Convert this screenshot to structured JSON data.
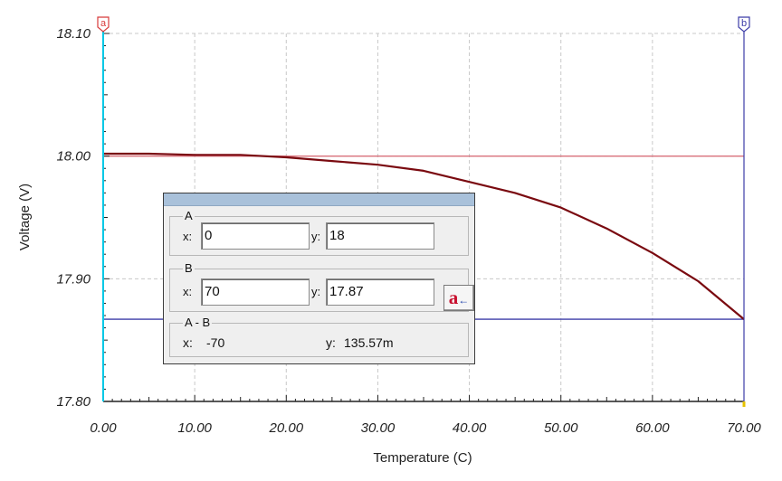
{
  "chart_data": {
    "type": "line",
    "title": "",
    "xlabel": "Temperature (C)",
    "ylabel": "Voltage (V)",
    "xlim": [
      0,
      70
    ],
    "ylim": [
      17.8,
      18.1
    ],
    "grid": true,
    "x_ticks": [
      "0.00",
      "10.00",
      "20.00",
      "30.00",
      "40.00",
      "50.00",
      "60.00",
      "70.00"
    ],
    "y_ticks": [
      "17.80",
      "17.90",
      "18.00",
      "18.10"
    ],
    "series": [
      {
        "color": "#7a0a10",
        "x": [
          0,
          5,
          10,
          15,
          20,
          25,
          30,
          35,
          40,
          45,
          50,
          55,
          60,
          65,
          70
        ],
        "values": [
          18.002,
          18.002,
          18.001,
          18.001,
          17.999,
          17.996,
          17.993,
          17.988,
          17.979,
          17.97,
          17.958,
          17.941,
          17.921,
          17.898,
          17.867
        ]
      }
    ],
    "cursors": [
      {
        "label": "a",
        "x": 0,
        "color": "#00c8e6"
      },
      {
        "label": "b",
        "x": 70,
        "color": "#3c3ca8"
      }
    ],
    "reference_lines": [
      {
        "y": 18.0,
        "color": "#d9707a"
      },
      {
        "y": 17.867,
        "color": "#3c3ca8"
      }
    ]
  },
  "readout": {
    "a": {
      "label": "A",
      "x_label": "x:",
      "x_value": "0",
      "y_label": "y:",
      "y_value": "18"
    },
    "b": {
      "label": "B",
      "x_label": "x:",
      "x_value": "70",
      "y_label": "y:",
      "y_value": "17.87",
      "swap_glyph": "a",
      "swap_arrow": "←"
    },
    "diff": {
      "label": "A - B",
      "x_label": "x:",
      "x_value": "-70",
      "y_label": "y:",
      "y_value": "135.57m"
    }
  },
  "colors": {
    "curve": "#7a0a10",
    "cursor_a": "#00c8e6",
    "cursor_b": "#3c3ca8",
    "ref_a": "#d9707a",
    "ref_b": "#3c3ca8",
    "axis": "#222222",
    "grid": "#c8c8c8"
  }
}
